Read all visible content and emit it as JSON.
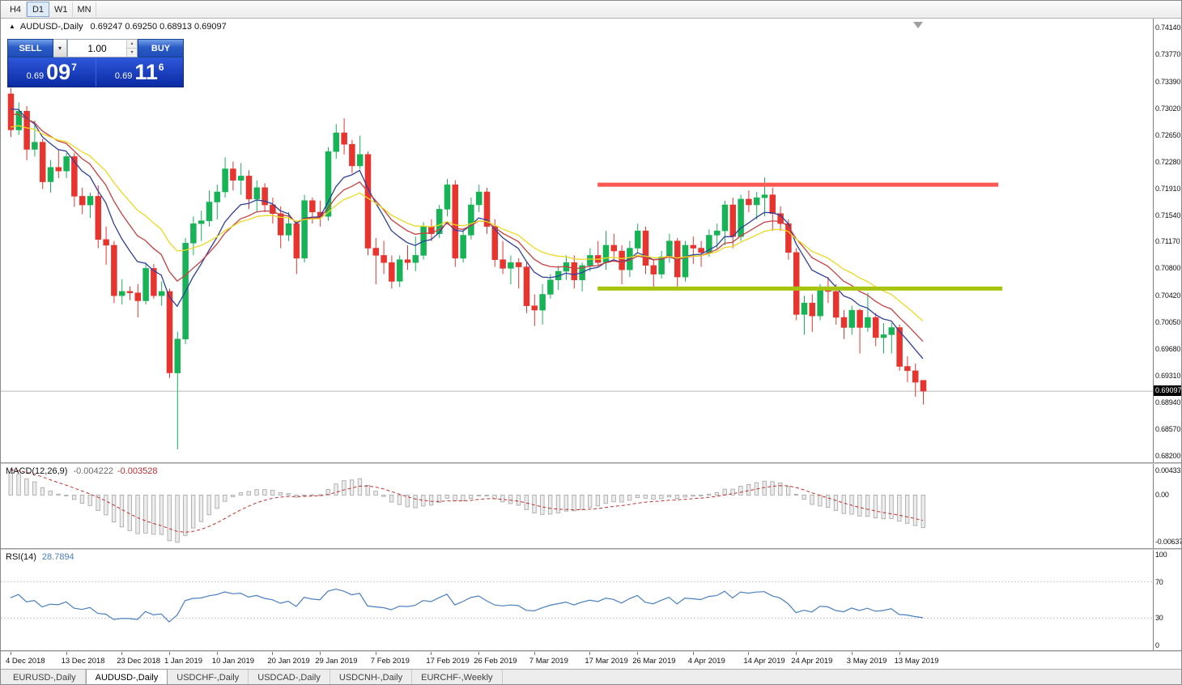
{
  "toolbar": {
    "timeframes": [
      {
        "label": "H4",
        "active": false
      },
      {
        "label": "D1",
        "active": true
      },
      {
        "label": "W1",
        "active": false
      },
      {
        "label": "MN",
        "active": false
      }
    ]
  },
  "icons": {
    "collapse_up": "▲",
    "chevron_down": "▾",
    "spin_up": "▴",
    "spin_down": "▾"
  },
  "chart": {
    "symbol_period": "AUDUSD-,Daily",
    "ohlc_values": "0.69247 0.69250 0.68913 0.69097"
  },
  "trade": {
    "sell_label": "SELL",
    "buy_label": "BUY",
    "volume": "1.00",
    "sell_price": {
      "prefix": "0.69",
      "big": "09",
      "sup": "7"
    },
    "buy_price": {
      "prefix": "0.69",
      "big": "11",
      "sup": "6"
    }
  },
  "tabs": {
    "items": [
      {
        "label": "EURUSD-,Daily",
        "slug": "eurusd-daily",
        "active": false
      },
      {
        "label": "AUDUSD-,Daily",
        "slug": "audusd-daily",
        "active": true
      },
      {
        "label": "USDCHF-,Daily",
        "slug": "usdchf-daily",
        "active": false
      },
      {
        "label": "USDCAD-,Daily",
        "slug": "usdcad-daily",
        "active": false
      },
      {
        "label": "USDCNH-,Daily",
        "slug": "usdcnh-daily",
        "active": false
      },
      {
        "label": "EURCHF-,Weekly",
        "slug": "eurchf-weekly",
        "active": false
      }
    ]
  },
  "colors": {
    "bull": "#17b356",
    "bear": "#e8342e",
    "ma_fast": "#2e3f9e",
    "ma_mid": "#c84040",
    "ma_slow": "#edd822",
    "resistance": "#ff5752",
    "support": "#a6c40e",
    "macd_hist_fill": "#ececec",
    "macd_hist_stroke": "#a3a3a3",
    "macd_signal": "#c22e2e",
    "rsi_line": "#4a7fc0",
    "current_price_line": "#b9b9b9"
  },
  "chart_data": {
    "type": "candlestick",
    "symbol": "AUDUSD-",
    "timeframe": "Daily",
    "ohlc": {
      "open": 0.69247,
      "high": 0.6925,
      "low": 0.68913,
      "close": 0.69097
    },
    "y_axis": {
      "min": 0.6811,
      "max": 0.74263,
      "labels": [
        "0.74140",
        "0.73770",
        "0.73390",
        "0.73020",
        "0.72650",
        "0.72280",
        "0.71910",
        "0.71540",
        "0.71170",
        "0.70800",
        "0.70420",
        "0.70050",
        "0.69680",
        "0.69310",
        "0.68940",
        "0.68570",
        "0.68200"
      ],
      "current_price": 0.69097,
      "current_price_label": "0.69097"
    },
    "x_axis": {
      "labels": [
        {
          "text": "4 Dec 2018",
          "idx": 0
        },
        {
          "text": "13 Dec 2018",
          "idx": 7
        },
        {
          "text": "23 Dec 2018",
          "idx": 14
        },
        {
          "text": "1 Jan 2019",
          "idx": 20
        },
        {
          "text": "10 Jan 2019",
          "idx": 26
        },
        {
          "text": "20 Jan 2019",
          "idx": 33
        },
        {
          "text": "29 Jan 2019",
          "idx": 39
        },
        {
          "text": "7 Feb 2019",
          "idx": 46
        },
        {
          "text": "17 Feb 2019",
          "idx": 53
        },
        {
          "text": "26 Feb 2019",
          "idx": 59
        },
        {
          "text": "7 Mar 2019",
          "idx": 66
        },
        {
          "text": "17 Mar 2019",
          "idx": 73
        },
        {
          "text": "26 Mar 2019",
          "idx": 79
        },
        {
          "text": "4 Apr 2019",
          "idx": 86
        },
        {
          "text": "14 Apr 2019",
          "idx": 93
        },
        {
          "text": "24 Apr 2019",
          "idx": 99
        },
        {
          "text": "3 May 2019",
          "idx": 106
        },
        {
          "text": "13 May 2019",
          "idx": 112
        }
      ]
    },
    "warmup_closes": [
      0.708,
      0.706,
      0.7075,
      0.709,
      0.7085,
      0.7105,
      0.712,
      0.714,
      0.713,
      0.7155,
      0.717,
      0.716,
      0.7185,
      0.72,
      0.719,
      0.7215,
      0.723,
      0.722,
      0.7245,
      0.7235,
      0.7255,
      0.7245,
      0.7262,
      0.7252,
      0.7268,
      0.7258,
      0.727,
      0.724,
      0.727,
      0.729,
      0.726,
      0.73,
      0.728,
      0.731,
      0.729,
      0.732,
      0.73,
      0.733,
      0.731,
      0.733
    ],
    "candles": [
      [
        0.7322,
        0.733,
        0.7262,
        0.7272
      ],
      [
        0.7272,
        0.731,
        0.7265,
        0.7298
      ],
      [
        0.7298,
        0.7305,
        0.723,
        0.7245
      ],
      [
        0.7245,
        0.7285,
        0.7235,
        0.7255
      ],
      [
        0.7255,
        0.726,
        0.719,
        0.72
      ],
      [
        0.72,
        0.723,
        0.7185,
        0.722
      ],
      [
        0.722,
        0.7245,
        0.7205,
        0.7215
      ],
      [
        0.7215,
        0.724,
        0.7205,
        0.7235
      ],
      [
        0.7235,
        0.724,
        0.7165,
        0.718
      ],
      [
        0.718,
        0.7192,
        0.7155,
        0.7168
      ],
      [
        0.7168,
        0.7185,
        0.715,
        0.718
      ],
      [
        0.718,
        0.7195,
        0.7108,
        0.712
      ],
      [
        0.712,
        0.7138,
        0.7085,
        0.7112
      ],
      [
        0.7112,
        0.7118,
        0.7032,
        0.7042
      ],
      [
        0.7042,
        0.7065,
        0.703,
        0.7048
      ],
      [
        0.7048,
        0.7055,
        0.7036,
        0.7046
      ],
      [
        0.7046,
        0.7058,
        0.7012,
        0.7035
      ],
      [
        0.7035,
        0.7088,
        0.703,
        0.708
      ],
      [
        0.708,
        0.7086,
        0.7038,
        0.7042
      ],
      [
        0.7042,
        0.7062,
        0.7028,
        0.7048
      ],
      [
        0.7048,
        0.7052,
        0.6928,
        0.6935
      ],
      [
        0.6935,
        0.6992,
        0.6829,
        0.6982
      ],
      [
        0.6982,
        0.7122,
        0.6975,
        0.7115
      ],
      [
        0.7115,
        0.7152,
        0.7098,
        0.7142
      ],
      [
        0.7142,
        0.716,
        0.7118,
        0.7146
      ],
      [
        0.7146,
        0.7188,
        0.7138,
        0.7172
      ],
      [
        0.7172,
        0.7196,
        0.7148,
        0.7186
      ],
      [
        0.7186,
        0.7234,
        0.7178,
        0.7218
      ],
      [
        0.7218,
        0.7228,
        0.7188,
        0.7202
      ],
      [
        0.7202,
        0.7226,
        0.7182,
        0.7208
      ],
      [
        0.7208,
        0.7216,
        0.7162,
        0.7176
      ],
      [
        0.7176,
        0.7202,
        0.7158,
        0.7192
      ],
      [
        0.7192,
        0.7198,
        0.7158,
        0.7168
      ],
      [
        0.7168,
        0.7178,
        0.7142,
        0.7156
      ],
      [
        0.7156,
        0.7166,
        0.7108,
        0.7126
      ],
      [
        0.7126,
        0.7158,
        0.7118,
        0.7142
      ],
      [
        0.7142,
        0.7146,
        0.7072,
        0.7094
      ],
      [
        0.7094,
        0.7182,
        0.7088,
        0.7174
      ],
      [
        0.7174,
        0.7178,
        0.7142,
        0.7158
      ],
      [
        0.7158,
        0.7174,
        0.7138,
        0.7152
      ],
      [
        0.7152,
        0.7248,
        0.7146,
        0.7242
      ],
      [
        0.7242,
        0.728,
        0.7232,
        0.7268
      ],
      [
        0.7268,
        0.7288,
        0.7238,
        0.7252
      ],
      [
        0.7252,
        0.7258,
        0.7212,
        0.7222
      ],
      [
        0.7222,
        0.7264,
        0.7218,
        0.7238
      ],
      [
        0.7238,
        0.7242,
        0.7098,
        0.7108
      ],
      [
        0.7108,
        0.7122,
        0.7058,
        0.7098
      ],
      [
        0.7098,
        0.7118,
        0.7072,
        0.7088
      ],
      [
        0.7088,
        0.7098,
        0.7052,
        0.7062
      ],
      [
        0.7062,
        0.7098,
        0.7054,
        0.7092
      ],
      [
        0.7092,
        0.7112,
        0.7078,
        0.7088
      ],
      [
        0.7088,
        0.7124,
        0.7076,
        0.7098
      ],
      [
        0.7098,
        0.7144,
        0.7092,
        0.7138
      ],
      [
        0.7138,
        0.7148,
        0.7118,
        0.7128
      ],
      [
        0.7128,
        0.7168,
        0.7122,
        0.7162
      ],
      [
        0.7162,
        0.7204,
        0.7152,
        0.7196
      ],
      [
        0.7196,
        0.7202,
        0.7082,
        0.7094
      ],
      [
        0.7094,
        0.7134,
        0.7088,
        0.7126
      ],
      [
        0.7126,
        0.7178,
        0.712,
        0.7168
      ],
      [
        0.7168,
        0.7196,
        0.7158,
        0.7186
      ],
      [
        0.7186,
        0.7192,
        0.7128,
        0.7138
      ],
      [
        0.7138,
        0.7148,
        0.7082,
        0.7092
      ],
      [
        0.7092,
        0.7118,
        0.7072,
        0.708
      ],
      [
        0.708,
        0.7098,
        0.7058,
        0.7088
      ],
      [
        0.7088,
        0.7094,
        0.7052,
        0.7082
      ],
      [
        0.7082,
        0.7088,
        0.7018,
        0.7028
      ],
      [
        0.7028,
        0.7044,
        0.7,
        0.7022
      ],
      [
        0.7022,
        0.7058,
        0.7002,
        0.7044
      ],
      [
        0.7044,
        0.7072,
        0.7038,
        0.7064
      ],
      [
        0.7064,
        0.7084,
        0.705,
        0.7076
      ],
      [
        0.7076,
        0.7098,
        0.7064,
        0.7088
      ],
      [
        0.7088,
        0.7098,
        0.7052,
        0.7064
      ],
      [
        0.7064,
        0.7088,
        0.7048,
        0.7084
      ],
      [
        0.7084,
        0.7108,
        0.7076,
        0.7098
      ],
      [
        0.7098,
        0.7118,
        0.7084,
        0.7088
      ],
      [
        0.7088,
        0.7132,
        0.7078,
        0.7112
      ],
      [
        0.7112,
        0.7128,
        0.7092,
        0.7104
      ],
      [
        0.7104,
        0.7112,
        0.7058,
        0.7078
      ],
      [
        0.7078,
        0.7118,
        0.7068,
        0.7108
      ],
      [
        0.7108,
        0.7142,
        0.7102,
        0.7132
      ],
      [
        0.7132,
        0.7138,
        0.7072,
        0.7084
      ],
      [
        0.7084,
        0.7092,
        0.7052,
        0.7072
      ],
      [
        0.7072,
        0.7104,
        0.7066,
        0.7096
      ],
      [
        0.7096,
        0.7128,
        0.7088,
        0.7118
      ],
      [
        0.7118,
        0.7122,
        0.7052,
        0.7068
      ],
      [
        0.7068,
        0.7118,
        0.7062,
        0.7112
      ],
      [
        0.7112,
        0.7124,
        0.7086,
        0.7108
      ],
      [
        0.7108,
        0.7118,
        0.7082,
        0.7102
      ],
      [
        0.7102,
        0.7134,
        0.7096,
        0.7126
      ],
      [
        0.7126,
        0.7142,
        0.7108,
        0.7132
      ],
      [
        0.7132,
        0.7174,
        0.7112,
        0.7168
      ],
      [
        0.7168,
        0.7178,
        0.7108,
        0.7124
      ],
      [
        0.7124,
        0.7182,
        0.7118,
        0.7176
      ],
      [
        0.7176,
        0.7188,
        0.7158,
        0.7168
      ],
      [
        0.7168,
        0.7186,
        0.7148,
        0.7178
      ],
      [
        0.7178,
        0.7206,
        0.7152,
        0.7182
      ],
      [
        0.7182,
        0.7192,
        0.7132,
        0.7156
      ],
      [
        0.7156,
        0.7166,
        0.7132,
        0.7142
      ],
      [
        0.7142,
        0.7148,
        0.7092,
        0.7102
      ],
      [
        0.7102,
        0.7108,
        0.7008,
        0.7016
      ],
      [
        0.7016,
        0.7042,
        0.6988,
        0.7032
      ],
      [
        0.7032,
        0.7044,
        0.6992,
        0.7014
      ],
      [
        0.7014,
        0.7058,
        0.7008,
        0.7052
      ],
      [
        0.7052,
        0.7068,
        0.7032,
        0.7048
      ],
      [
        0.7048,
        0.7058,
        0.7002,
        0.7012
      ],
      [
        0.7012,
        0.7022,
        0.6982,
        0.6998
      ],
      [
        0.6998,
        0.7028,
        0.6988,
        0.7022
      ],
      [
        0.7022,
        0.7024,
        0.6962,
        0.6998
      ],
      [
        0.6998,
        0.7046,
        0.6992,
        0.7012
      ],
      [
        0.7012,
        0.7018,
        0.6972,
        0.6984
      ],
      [
        0.6984,
        0.7004,
        0.6962,
        0.6988
      ],
      [
        0.6988,
        0.7004,
        0.6962,
        0.6998
      ],
      [
        0.6998,
        0.7002,
        0.6938,
        0.6944
      ],
      [
        0.6944,
        0.6958,
        0.6922,
        0.6938
      ],
      [
        0.6938,
        0.6948,
        0.6902,
        0.6922
      ],
      [
        0.69247,
        0.6925,
        0.68913,
        0.69097
      ]
    ],
    "moving_averages": [
      {
        "name": "ma-fast-line",
        "period": 8,
        "color": "#2e3f9e"
      },
      {
        "name": "ma-mid-line",
        "period": 13,
        "color": "#c84040"
      },
      {
        "name": "ma-slow-line",
        "period": 21,
        "color": "#edd822"
      }
    ],
    "objects": [
      {
        "name": "resistance-line",
        "type": "horizontal-segment",
        "price": 0.7196,
        "from_idx": 74,
        "to_idx": 124.5,
        "color": "#ff5752",
        "thickness": 5
      },
      {
        "name": "support-line",
        "type": "horizontal-segment",
        "price": 0.7052,
        "from_idx": 74,
        "to_idx": 125,
        "color": "#a6c40e",
        "thickness": 5
      }
    ],
    "macd": {
      "name": "MACD(12,26,9)",
      "fast": 12,
      "slow": 26,
      "signal_period": 9,
      "value_main": "-0.004222",
      "value_signal": "-0.003528",
      "axis_labels": [
        "0.004331",
        "0.00",
        "-0.00637"
      ]
    },
    "rsi": {
      "name": "RSI(14)",
      "period": 14,
      "value": "28.7894",
      "levels": [
        70,
        30
      ],
      "axis_labels": [
        "100",
        "70",
        "30",
        "0"
      ]
    }
  }
}
